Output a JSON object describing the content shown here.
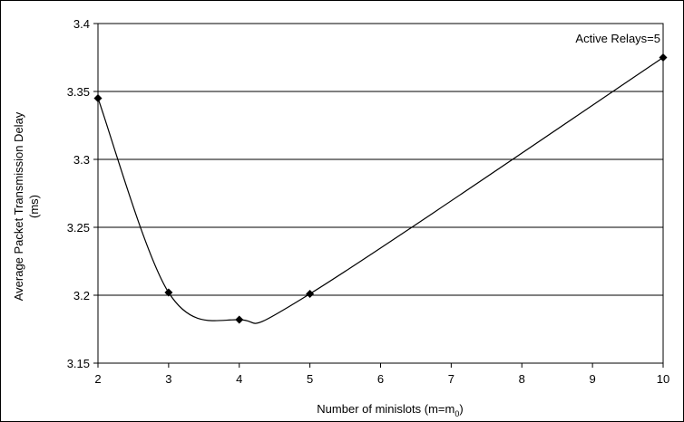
{
  "chart_data": {
    "type": "line",
    "x": [
      2,
      3,
      4,
      5,
      10
    ],
    "x_tick_labels": [
      "2",
      "3",
      "4",
      "5",
      "6",
      "7",
      "8",
      "9",
      "10"
    ],
    "y_tick_labels": [
      "3.15",
      "3.2",
      "3.25",
      "3.3",
      "3.35",
      "3.4"
    ],
    "series": [
      {
        "values": [
          3.345,
          3.202,
          3.182,
          3.201,
          3.375
        ],
        "color": "#000000",
        "marker": "diamond",
        "smooth": true
      }
    ],
    "xlim": [
      2,
      10
    ],
    "ylim": [
      3.15,
      3.4
    ],
    "ylabel_line1": "Average Packet Transmission Delay",
    "ylabel_line2": "(ms)",
    "xlabel_main": "Number of minislots (m=m",
    "xlabel_sub": "0",
    "xlabel_close": ")",
    "annotation": "Active Relays=5",
    "grid": "horizontal"
  }
}
